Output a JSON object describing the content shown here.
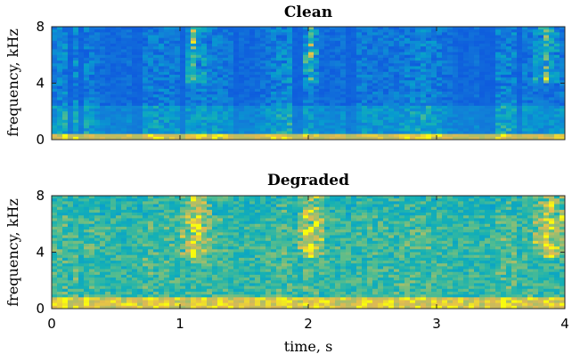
{
  "chart_data": [
    {
      "type": "heatmap",
      "title": "Clean",
      "xlabel": "",
      "ylabel": "frequency, kHz",
      "xlim": [
        0,
        4
      ],
      "ylim": [
        0,
        8
      ],
      "xticks": [],
      "yticks": [
        0,
        4,
        8
      ],
      "colormap": "parula",
      "grid": false
    },
    {
      "type": "heatmap",
      "title": "Degraded",
      "xlabel": "time, s",
      "ylabel": "frequency, kHz",
      "xlim": [
        0,
        4
      ],
      "ylim": [
        0,
        8
      ],
      "xticks": [
        0,
        1,
        2,
        3,
        4
      ],
      "yticks": [
        0,
        4,
        8
      ],
      "colormap": "parula",
      "grid": false
    }
  ]
}
